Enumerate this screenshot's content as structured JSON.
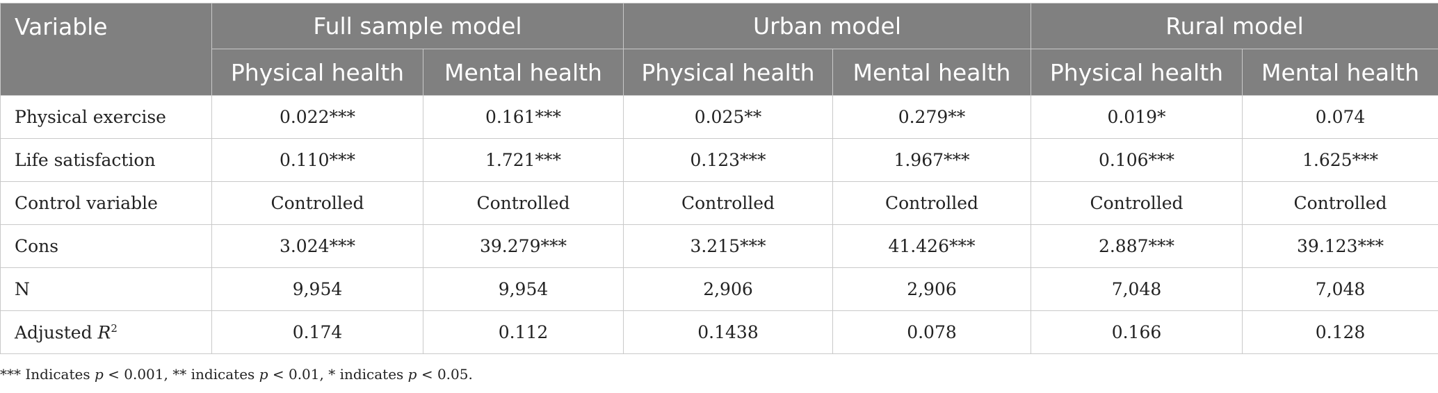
{
  "header": {
    "variable": "Variable",
    "groups": [
      "Full sample model",
      "Urban model",
      "Rural model"
    ],
    "subheads": [
      "Physical health",
      "Mental health",
      "Physical health",
      "Mental health",
      "Physical health",
      "Mental health"
    ]
  },
  "rows": [
    {
      "label": "Physical exercise",
      "cells": [
        "0.022***",
        "0.161***",
        "0.025**",
        "0.279**",
        "0.019*",
        "0.074"
      ]
    },
    {
      "label": "Life satisfaction",
      "cells": [
        "0.110***",
        "1.721***",
        "0.123***",
        "1.967***",
        "0.106***",
        "1.625***"
      ]
    },
    {
      "label": "Control variable",
      "cells": [
        "Controlled",
        "Controlled",
        "Controlled",
        "Controlled",
        "Controlled",
        "Controlled"
      ]
    },
    {
      "label": "Cons",
      "cells": [
        "3.024***",
        "39.279***",
        "3.215***",
        "41.426***",
        "2.887***",
        "39.123***"
      ]
    },
    {
      "label": "N",
      "cells": [
        "9,954",
        "9,954",
        "2,906",
        "2,906",
        "7,048",
        "7,048"
      ]
    },
    {
      "label": "Adjusted",
      "label_italic": "R",
      "label_sup": "2",
      "cells": [
        "0.174",
        "0.112",
        "0.1438",
        "0.078",
        "0.166",
        "0.128"
      ]
    }
  ],
  "footnote": {
    "p1": "*** Indicates ",
    "var": "p",
    "t1": " < 0.001, ** indicates ",
    "t2": " < 0.01, * indicates ",
    "t3": " < 0.05."
  }
}
